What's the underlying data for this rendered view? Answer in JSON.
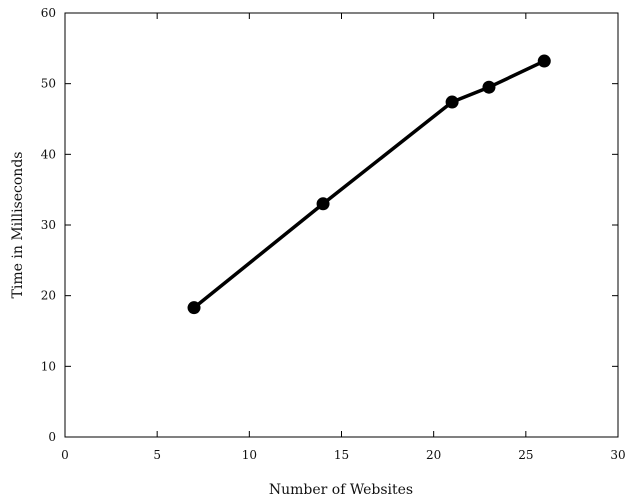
{
  "chart_data": {
    "type": "line",
    "title": "",
    "xlabel": "Number of Websites",
    "ylabel": "Time in Milliseconds",
    "xlim": [
      0,
      30
    ],
    "ylim": [
      0,
      60
    ],
    "x_ticks": [
      0,
      5,
      10,
      15,
      20,
      25,
      30
    ],
    "y_ticks": [
      0,
      10,
      20,
      30,
      40,
      50,
      60
    ],
    "grid": false,
    "legend": "none",
    "series": [
      {
        "x": [
          7,
          14,
          21,
          23,
          26
        ],
        "y": [
          18.3,
          33.0,
          47.4,
          49.5,
          53.2
        ],
        "color": "#000000",
        "marker": "circle"
      }
    ]
  }
}
